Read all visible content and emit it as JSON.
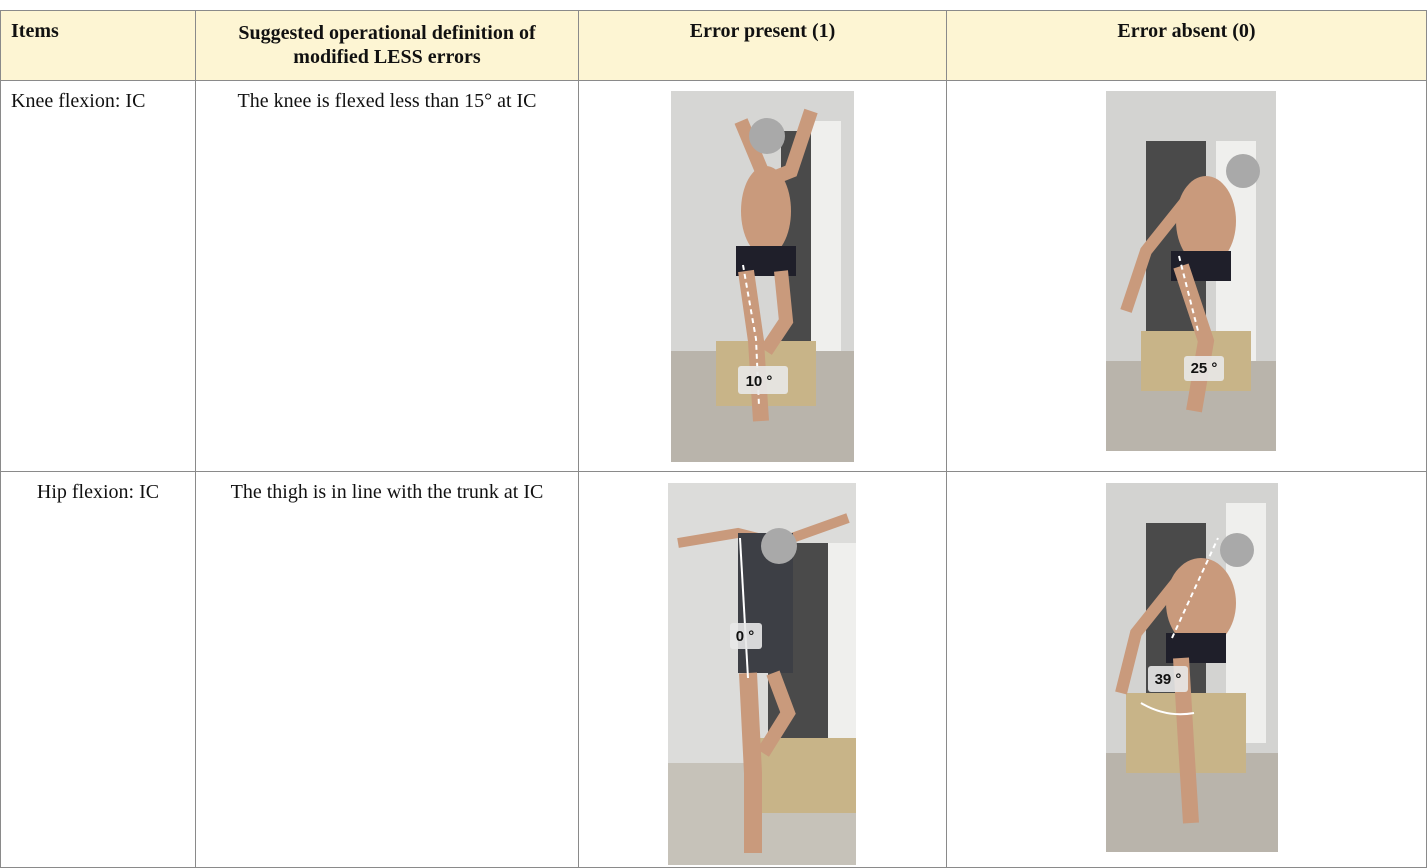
{
  "table": {
    "header": [
      "Items",
      "Suggested operational definition of modified LESS errors",
      "Error present (1)",
      "Error absent (0)"
    ],
    "rows": [
      {
        "item": "Knee flexion: IC",
        "definition": "The knee is flexed less than 15° at IC",
        "error_present_angle": "10 °",
        "error_absent_angle": "25 °"
      },
      {
        "item": "Hip flexion: IC",
        "definition": "The thigh is in line with the trunk at IC",
        "error_present_angle": "0 °",
        "error_absent_angle": "39 °"
      }
    ]
  }
}
